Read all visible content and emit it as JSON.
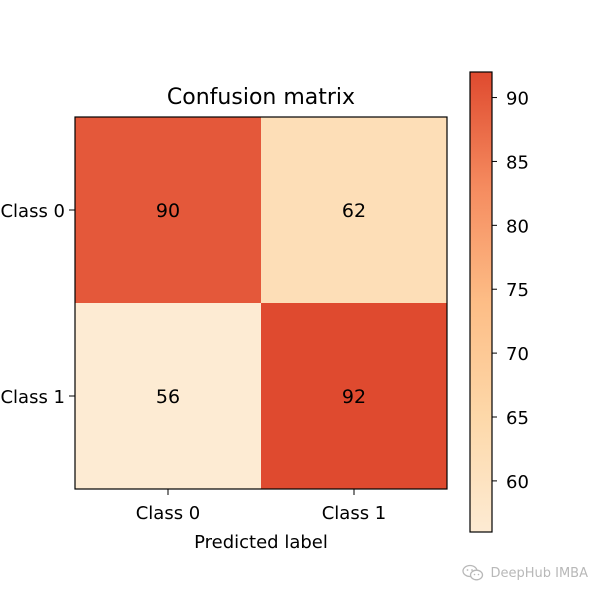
{
  "chart_data": {
    "type": "heatmap",
    "title": "Confusion matrix",
    "xlabel": "Predicted label",
    "ylabel": "",
    "x_categories": [
      "Class 0",
      "Class 1"
    ],
    "y_categories": [
      "Class 0",
      "Class 1"
    ],
    "values": [
      [
        90,
        62
      ],
      [
        56,
        92
      ]
    ],
    "colorbar": {
      "min": 56,
      "max": 92,
      "ticks": [
        60,
        65,
        70,
        75,
        80,
        85,
        90
      ],
      "colormap": "OrRd",
      "colors": {
        "low": "#fdebd3",
        "mid": "#fdc28c",
        "high": "#e0452f"
      }
    },
    "grid": false
  },
  "watermark": {
    "text": "DeepHub IMBA",
    "icon": "wechat-icon"
  }
}
